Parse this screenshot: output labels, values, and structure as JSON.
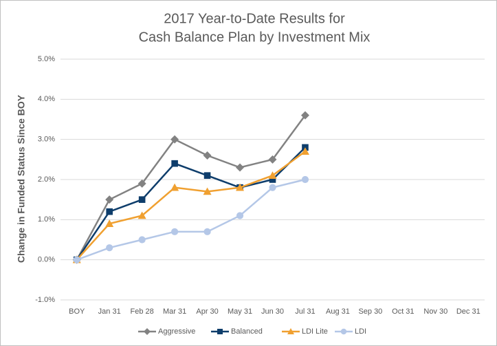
{
  "chart_data": {
    "type": "line",
    "title": [
      "2017 Year-to-Date Results for",
      "Cash Balance Plan by Investment Mix"
    ],
    "y_label": "Change in Funded Status Since BOY",
    "categories": [
      "BOY",
      "Jan 31",
      "Feb 28",
      "Mar 31",
      "Apr 30",
      "May 31",
      "Jun 30",
      "Jul 31",
      "Aug 31",
      "Sep 30",
      "Oct 31",
      "Nov 30",
      "Dec 31"
    ],
    "series": [
      {
        "name": "Aggressive",
        "color": "#828282",
        "marker": "diamond",
        "values": [
          0,
          1.5,
          1.9,
          3.0,
          2.6,
          2.3,
          2.5,
          3.6,
          null,
          null,
          null,
          null,
          null
        ]
      },
      {
        "name": "Balanced",
        "color": "#0e3d6b",
        "marker": "square",
        "values": [
          0,
          1.2,
          1.5,
          2.4,
          2.1,
          1.8,
          2.0,
          2.8,
          null,
          null,
          null,
          null,
          null
        ]
      },
      {
        "name": "LDI Lite",
        "color": "#f0a030",
        "marker": "triangle",
        "values": [
          0,
          0.9,
          1.1,
          1.8,
          1.7,
          1.8,
          2.1,
          2.7,
          null,
          null,
          null,
          null,
          null
        ]
      },
      {
        "name": "LDI",
        "color": "#b4c7e7",
        "marker": "circle",
        "values": [
          0,
          0.3,
          0.5,
          0.7,
          0.7,
          1.1,
          1.8,
          2.0,
          null,
          null,
          null,
          null,
          null
        ]
      }
    ],
    "ylim": [
      -1,
      5
    ],
    "yticks": [
      {
        "value": -1,
        "label": "-1.0%"
      },
      {
        "value": 0,
        "label": "0.0%"
      },
      {
        "value": 1,
        "label": "1.0%"
      },
      {
        "value": 2,
        "label": "2.0%"
      },
      {
        "value": 3,
        "label": "3.0%"
      },
      {
        "value": 4,
        "label": "4.0%"
      },
      {
        "value": 5,
        "label": "5.0%"
      }
    ],
    "grid": true,
    "legend": "bottom"
  }
}
